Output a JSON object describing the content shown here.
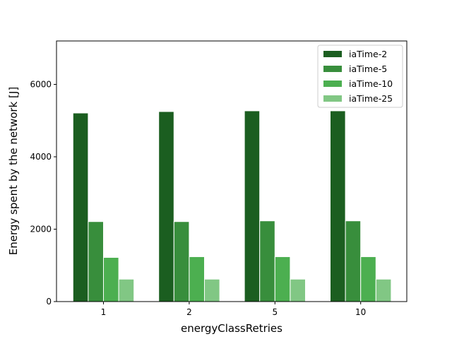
{
  "chart_data": {
    "type": "bar",
    "title": "",
    "xlabel": "energyClassRetries",
    "ylabel": "Energy spent by the network [J]",
    "categories": [
      "1",
      "2",
      "5",
      "10"
    ],
    "ylim": [
      0,
      7200
    ],
    "yticks": [
      0,
      2000,
      4000,
      6000
    ],
    "grid": false,
    "legend_position": "top-right",
    "series": [
      {
        "name": "iaTime-2",
        "color": "#1b5e20",
        "values": [
          5210,
          5250,
          5270,
          5270
        ]
      },
      {
        "name": "iaTime-5",
        "color": "#388e3c",
        "values": [
          2210,
          2210,
          2230,
          2230
        ]
      },
      {
        "name": "iaTime-10",
        "color": "#4caf50",
        "values": [
          1220,
          1240,
          1240,
          1240
        ]
      },
      {
        "name": "iaTime-25",
        "color": "#81c784",
        "values": [
          620,
          620,
          620,
          620
        ]
      }
    ]
  }
}
